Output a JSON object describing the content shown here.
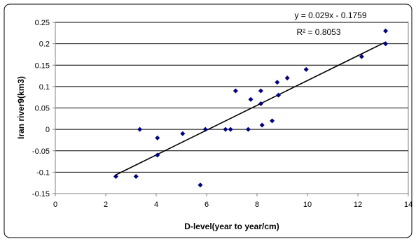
{
  "chart_data": {
    "type": "scatter",
    "xlabel": "D-level(year to year/cm)",
    "ylabel": "Iran river9(km3)",
    "xlim": [
      0,
      14
    ],
    "ylim": [
      -0.15,
      0.25
    ],
    "x_ticks": [
      0,
      2,
      4,
      6,
      8,
      10,
      12,
      14
    ],
    "y_ticks": [
      -0.15,
      -0.1,
      -0.05,
      0,
      0.05,
      0.1,
      0.15,
      0.2,
      0.25
    ],
    "x_tick_labels": [
      "0",
      "2",
      "4",
      "6",
      "8",
      "10",
      "12",
      "14"
    ],
    "y_tick_labels": [
      "-0.15",
      "-0.1",
      "-0.05",
      "0",
      "0.05",
      "0.1",
      "0.15",
      "0.2",
      "0.25"
    ],
    "grid": {
      "horizontal": true,
      "vertical": false
    },
    "legend": "none",
    "marker": {
      "shape": "diamond",
      "color": "#000080"
    },
    "trendline": {
      "slope": 0.029,
      "intercept": -0.1759,
      "x_range": [
        2.4,
        13.1
      ],
      "equation_label": "y = 0.029x - 0.1759",
      "r2_label": "R² = 0.8053",
      "color": "#000000"
    },
    "points": [
      {
        "x": 2.4,
        "y": -0.11
      },
      {
        "x": 3.2,
        "y": -0.11
      },
      {
        "x": 3.35,
        "y": 0.0
      },
      {
        "x": 4.05,
        "y": -0.02
      },
      {
        "x": 4.05,
        "y": -0.06
      },
      {
        "x": 5.05,
        "y": -0.01
      },
      {
        "x": 5.75,
        "y": -0.13
      },
      {
        "x": 5.95,
        "y": 0.0
      },
      {
        "x": 6.75,
        "y": 0.0
      },
      {
        "x": 6.95,
        "y": 0.0
      },
      {
        "x": 7.15,
        "y": 0.09
      },
      {
        "x": 7.65,
        "y": 0.0
      },
      {
        "x": 7.75,
        "y": 0.07
      },
      {
        "x": 8.15,
        "y": 0.09
      },
      {
        "x": 8.15,
        "y": 0.06
      },
      {
        "x": 8.2,
        "y": 0.01
      },
      {
        "x": 8.6,
        "y": 0.02
      },
      {
        "x": 8.8,
        "y": 0.11
      },
      {
        "x": 8.85,
        "y": 0.08
      },
      {
        "x": 9.2,
        "y": 0.12
      },
      {
        "x": 9.95,
        "y": 0.14
      },
      {
        "x": 12.15,
        "y": 0.17
      },
      {
        "x": 13.1,
        "y": 0.23
      },
      {
        "x": 13.1,
        "y": 0.2
      }
    ]
  }
}
